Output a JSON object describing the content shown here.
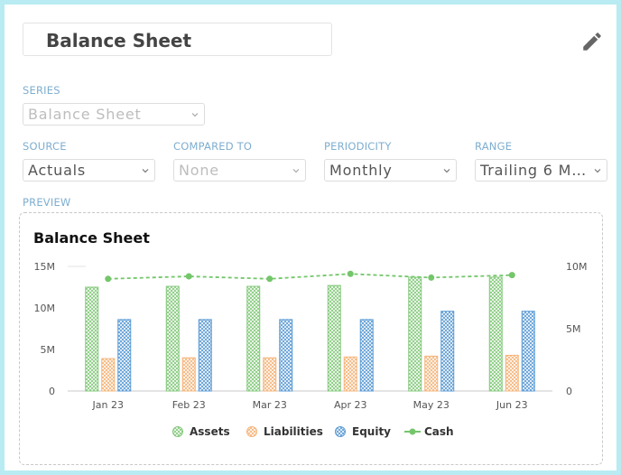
{
  "header": {
    "title": "Balance Sheet"
  },
  "form": {
    "series": {
      "label": "SERIES",
      "value": "Balance Sheet"
    },
    "source": {
      "label": "SOURCE",
      "value": "Actuals"
    },
    "compared": {
      "label": "COMPARED TO",
      "value": "None"
    },
    "periodicity": {
      "label": "PERIODICITY",
      "value": "Monthly"
    },
    "range": {
      "label": "RANGE",
      "value": "Trailing 6 Mo..."
    }
  },
  "preview": {
    "label": "PREVIEW"
  },
  "colors": {
    "assets": "#84c97c",
    "liabilities": "#f5b47a",
    "equity": "#5b9bd5",
    "cash": "#74c66b"
  },
  "chart_data": {
    "type": "bar",
    "title": "Balance Sheet",
    "categories": [
      "Jan 23",
      "Feb 23",
      "Mar 23",
      "Apr 23",
      "May 23",
      "Jun 23"
    ],
    "series": [
      {
        "name": "Assets",
        "values": [
          12.5,
          12.6,
          12.6,
          12.7,
          13.7,
          13.7
        ]
      },
      {
        "name": "Liabilities",
        "values": [
          3.9,
          4.0,
          4.0,
          4.1,
          4.2,
          4.3
        ]
      },
      {
        "name": "Equity",
        "values": [
          8.6,
          8.6,
          8.6,
          8.6,
          9.6,
          9.6
        ]
      },
      {
        "name": "Cash",
        "axis": "right",
        "values": [
          9.0,
          9.2,
          9.0,
          9.4,
          9.1,
          9.3
        ]
      }
    ],
    "yticks_left": [
      "0",
      "5M",
      "10M",
      "15M"
    ],
    "yticks_right": [
      "0",
      "5M",
      "10M"
    ],
    "ylim_left": [
      0,
      15
    ],
    "ylim_right": [
      0,
      10
    ],
    "legend": [
      "Assets",
      "Liabilities",
      "Equity",
      "Cash"
    ],
    "legend_position": "bottom"
  }
}
